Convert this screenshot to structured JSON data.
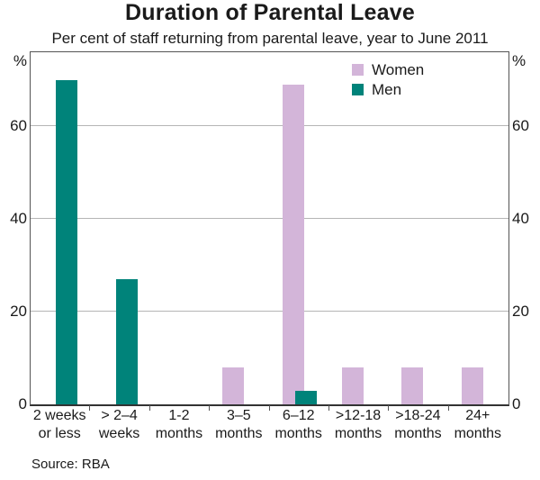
{
  "chart_data": {
    "type": "bar",
    "title": "Duration of Parental Leave",
    "subtitle": "Per cent of staff returning from parental leave, year to June 2011",
    "source": "Source: RBA",
    "unit_label": "%",
    "categories": [
      {
        "line1": "2 weeks",
        "line2": "or less"
      },
      {
        "line1": "> 2–4",
        "line2": "weeks"
      },
      {
        "line1": "1-2",
        "line2": "months"
      },
      {
        "line1": "3–5",
        "line2": "months"
      },
      {
        "line1": "6–12",
        "line2": "months"
      },
      {
        "line1": ">12-18",
        "line2": "months"
      },
      {
        "line1": ">18-24",
        "line2": "months"
      },
      {
        "line1": "24+",
        "line2": "months"
      }
    ],
    "series": [
      {
        "name": "Women",
        "color": "#d3b5d9",
        "values": [
          0,
          0,
          0,
          8,
          69,
          8,
          8,
          8
        ]
      },
      {
        "name": "Men",
        "color": "#00837a",
        "values": [
          70,
          27,
          0,
          0,
          3,
          0,
          0,
          0
        ]
      }
    ],
    "ylim": [
      0,
      76
    ],
    "yticks": [
      0,
      20,
      40,
      60
    ],
    "grid": true,
    "legend_position": "top-right-inside",
    "axis_color": "#545454",
    "gridline_color": "#b5b5b5"
  }
}
